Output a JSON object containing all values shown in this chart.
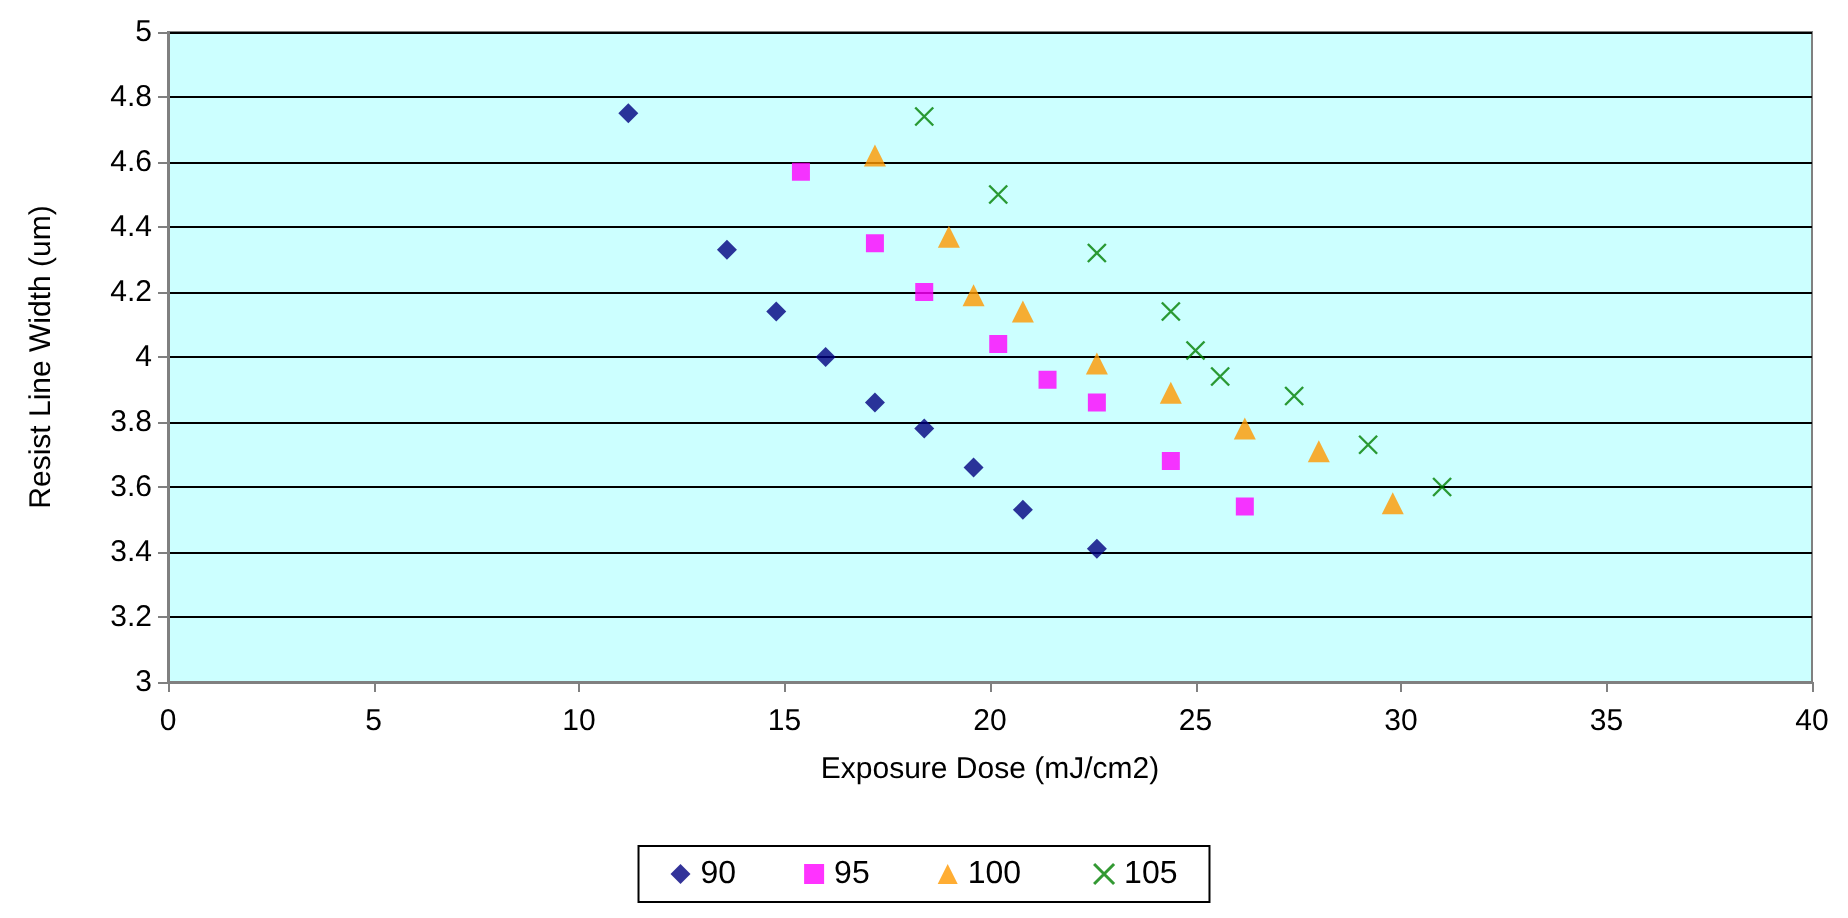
{
  "chart_data": {
    "type": "scatter",
    "xlabel": "Exposure Dose (mJ/cm2)",
    "ylabel": "Resist Line Width (um)",
    "xlim": [
      0,
      40
    ],
    "xticks": [
      0,
      5,
      10,
      15,
      20,
      25,
      30,
      35,
      40
    ],
    "ylim": [
      3,
      5
    ],
    "yticks": [
      3,
      3.2,
      3.4,
      3.6,
      3.8,
      4,
      4.2,
      4.4,
      4.6,
      4.8,
      5
    ],
    "grid": "y",
    "legend": "bottom",
    "series": [
      {
        "name": "90",
        "color": "#000080",
        "marker": "diamond",
        "x": [
          11.2,
          13.6,
          14.8,
          16.0,
          17.2,
          18.4,
          19.6,
          20.8,
          22.6
        ],
        "values": [
          4.75,
          4.33,
          4.14,
          4.0,
          3.86,
          3.78,
          3.66,
          3.53,
          3.41
        ]
      },
      {
        "name": "95",
        "color": "#ff00ff",
        "marker": "square",
        "x": [
          15.4,
          17.2,
          18.4,
          20.2,
          21.4,
          22.6,
          24.4,
          26.2
        ],
        "values": [
          4.57,
          4.35,
          4.2,
          4.04,
          3.93,
          3.86,
          3.68,
          3.54
        ]
      },
      {
        "name": "100",
        "color": "#ff9900",
        "marker": "triangle",
        "x": [
          17.2,
          19.0,
          19.6,
          20.8,
          22.6,
          24.4,
          26.2,
          28.0,
          29.8
        ],
        "values": [
          4.62,
          4.37,
          4.19,
          4.14,
          3.98,
          3.89,
          3.78,
          3.71,
          3.55
        ]
      },
      {
        "name": "105",
        "color": "#008000",
        "marker": "cross",
        "x": [
          18.4,
          20.2,
          22.6,
          24.4,
          25.0,
          25.6,
          27.4,
          29.2,
          31.0
        ],
        "values": [
          4.74,
          4.5,
          4.32,
          4.14,
          4.02,
          3.94,
          3.88,
          3.73,
          3.6
        ]
      }
    ]
  }
}
